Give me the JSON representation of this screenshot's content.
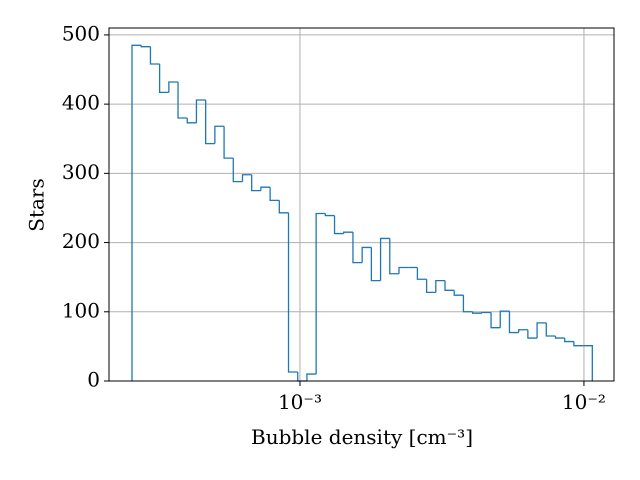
{
  "chart_data": {
    "type": "histogram",
    "x_label": "Bubble density [cm⁻³]",
    "y_label": "Stars",
    "color": "#1f77b4",
    "x_log": true,
    "grid": true,
    "bins": [
      0.0002562,
      0.0002761,
      0.0002975,
      0.0003205,
      0.0003454,
      0.0003721,
      0.000401,
      0.000432,
      0.0004655,
      0.0005016,
      0.0005405,
      0.0005824,
      0.0006275,
      0.0006761,
      0.0007285,
      0.000785,
      0.0008458,
      0.0009114,
      0.000982,
      0.0010581,
      0.0011401,
      0.0012285,
      0.0013237,
      0.0014263,
      0.0015368,
      0.0016559,
      0.0017843,
      0.0019226,
      0.0020716,
      0.0022321,
      0.0024051,
      0.0025915,
      0.0027924,
      0.0030088,
      0.003242,
      0.0034932,
      0.0037639,
      0.0040556,
      0.0043699,
      0.0047086,
      0.0050735,
      0.0054667,
      0.0058904,
      0.0063469,
      0.0068388,
      0.0073688,
      0.0079399,
      0.0085552,
      0.0092183,
      0.0099327,
      0.010702
    ],
    "values": [
      485,
      483,
      458,
      417,
      432,
      380,
      373,
      406,
      343,
      368,
      322,
      288,
      298,
      275,
      280,
      261,
      243,
      13,
      0,
      10,
      242,
      239,
      213,
      215,
      171,
      193,
      145,
      206,
      155,
      164,
      164,
      147,
      128,
      145,
      131,
      124,
      100,
      98,
      99,
      77,
      101,
      70,
      74,
      62,
      84,
      65,
      62,
      57,
      51,
      51
    ],
    "xlim": [
      0.0002126,
      0.01276
    ],
    "xticks": [
      {
        "value": 0.001,
        "label": "10⁻³"
      },
      {
        "value": 0.01,
        "label": "10⁻²"
      }
    ],
    "ylim": [
      0,
      510
    ],
    "yticks": [
      0,
      100,
      200,
      300,
      400,
      500
    ]
  }
}
